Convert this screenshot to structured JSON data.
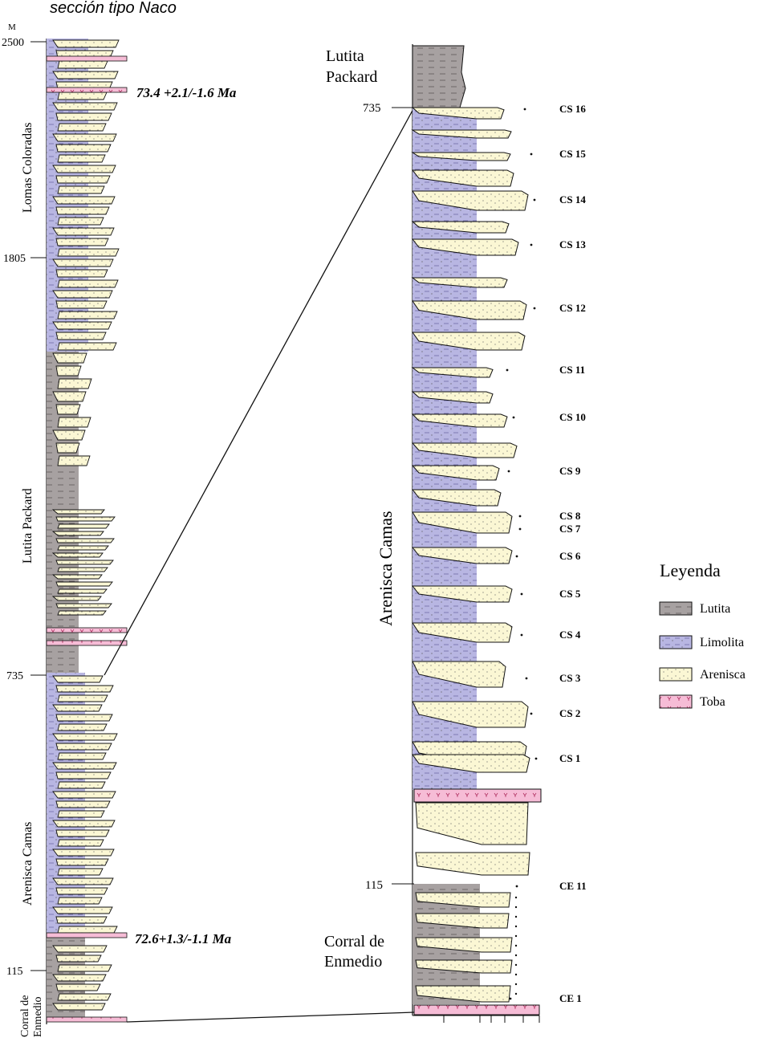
{
  "title": "sección tipo Naco",
  "unit_label": "M",
  "left_column": {
    "ticks": [
      "2500",
      "1805",
      "735",
      "115"
    ],
    "formations": [
      "Lomas Coloradas",
      "Lutita  Packard",
      "Arenisca Camas",
      "Corral de Enmedio"
    ],
    "ages": [
      "73.4 +2.1/-1.6 Ma",
      "72.6+1.3/-1.1 Ma"
    ]
  },
  "right_column": {
    "ticks": [
      "735",
      "115"
    ],
    "formations": [
      "Lutita Packard",
      "Arenisca Camas",
      "Corral de Enmedio"
    ],
    "samples": [
      "CS 16",
      "CS 15",
      "CS 14",
      "CS 13",
      "CS 12",
      "CS 11",
      "CS 10",
      "CS 9",
      "CS 8",
      "CS 7",
      "CS 6",
      "CS 5",
      "CS 4",
      "CS 3",
      "CS 2",
      "CS 1",
      "CE 11",
      "CE 1"
    ]
  },
  "legend": {
    "title": "Leyenda",
    "items": [
      {
        "label": "Lutita",
        "color": "#a7a1a1"
      },
      {
        "label": "Limolita",
        "color": "#b8b6e2"
      },
      {
        "label": "Arenisca",
        "color": "#fbf7d4"
      },
      {
        "label": "Toba",
        "color": "#f6bcd6"
      }
    ]
  },
  "colors": {
    "lutita": "#a7a1a1",
    "limolita": "#b8b6e2",
    "arenisca": "#fbf7d4",
    "toba": "#f6bcd6",
    "line": "#111111"
  }
}
